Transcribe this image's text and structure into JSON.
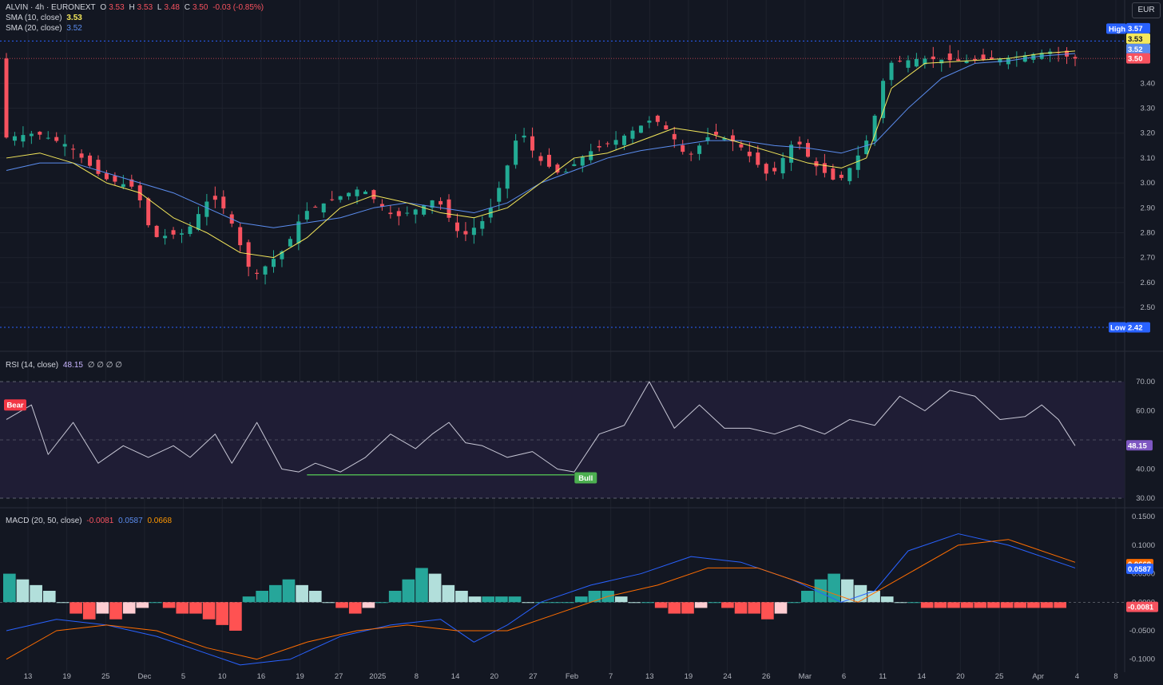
{
  "header": {
    "symbol": "ALVIN · 4h · EURONEXT",
    "open_label": "O",
    "open": "3.53",
    "high_label": "H",
    "high": "3.53",
    "low_label": "L",
    "low": "3.48",
    "close_label": "C",
    "close": "3.50",
    "change": "-0.03 (-0.85%)",
    "sma10_label": "SMA (10, close)",
    "sma10_value": "3.53",
    "sma20_label": "SMA (20, close)",
    "sma20_value": "3.52",
    "rsi_label": "RSI (14, close)",
    "rsi_value": "48.15",
    "rsi_extra": "∅ ∅ ∅ ∅",
    "macd_label": "MACD (20, 50, close)",
    "macd_hist": "-0.0081",
    "macd_line": "0.0587",
    "macd_signal": "0.0668"
  },
  "currency": "EUR",
  "colors": {
    "bg": "#131722",
    "grid": "#1e222d",
    "up": "#22ab94",
    "down": "#f7525f",
    "sma10": "#f5e85b",
    "sma20": "#5b8def",
    "rsi": "#c8c8d6",
    "rsi_band": "#1f1d35",
    "macd": "#2962ff",
    "signal": "#ff6d00",
    "hist_up_strong": "#26a69a",
    "hist_up_weak": "#b2dfdb",
    "hist_dn_strong": "#ff5252",
    "hist_dn_weak": "#ffcdd2",
    "high_low": "#2962ff",
    "bear": "#f23645",
    "bull": "#4caf50"
  },
  "chart_data": [
    {
      "type": "candlestick",
      "title": "ALVIN · 4h · EURONEXT",
      "ylim": [
        2.42,
        3.6
      ],
      "y_ticks": [
        "3.40",
        "3.30",
        "3.20",
        "3.10",
        "3.00",
        "2.90",
        "2.80",
        "2.70",
        "2.60",
        "2.50"
      ],
      "x_ticks": [
        "13",
        "19",
        "25",
        "Dec",
        "5",
        "10",
        "16",
        "19",
        "27",
        "2025",
        "8",
        "14",
        "20",
        "27",
        "Feb",
        "7",
        "13",
        "19",
        "24",
        "26",
        "Mar",
        "6",
        "11",
        "14",
        "20",
        "25",
        "Apr",
        "4",
        "8"
      ],
      "high_value": "3.57",
      "high_label": "High",
      "low_value": "2.42",
      "low_label": "Low",
      "last_price": "3.50",
      "price_path": [
        [
          0,
          3.18
        ],
        [
          4,
          3.2
        ],
        [
          8,
          3.15
        ],
        [
          12,
          3.02
        ],
        [
          16,
          2.98
        ],
        [
          18,
          2.78
        ],
        [
          22,
          2.8
        ],
        [
          25,
          2.95
        ],
        [
          27,
          2.88
        ],
        [
          30,
          2.62
        ],
        [
          32,
          2.68
        ],
        [
          34,
          2.74
        ],
        [
          36,
          2.88
        ],
        [
          40,
          2.94
        ],
        [
          43,
          2.98
        ],
        [
          47,
          2.86
        ],
        [
          50,
          2.9
        ],
        [
          52,
          2.94
        ],
        [
          55,
          2.78
        ],
        [
          58,
          2.86
        ],
        [
          60,
          3.02
        ],
        [
          62,
          3.22
        ],
        [
          64,
          3.1
        ],
        [
          67,
          3.03
        ],
        [
          70,
          3.12
        ],
        [
          74,
          3.18
        ],
        [
          78,
          3.26
        ],
        [
          80,
          3.2
        ],
        [
          82,
          3.1
        ],
        [
          85,
          3.2
        ],
        [
          88,
          3.16
        ],
        [
          92,
          3.02
        ],
        [
          95,
          3.18
        ],
        [
          97,
          3.08
        ],
        [
          100,
          3.0
        ],
        [
          102,
          3.08
        ],
        [
          104,
          3.2
        ],
        [
          106,
          3.48
        ],
        [
          110,
          3.5
        ],
        [
          115,
          3.49
        ],
        [
          120,
          3.5
        ],
        [
          126,
          3.53
        ],
        [
          128,
          3.5
        ]
      ],
      "sma10_path": [
        [
          0,
          3.1
        ],
        [
          4,
          3.12
        ],
        [
          8,
          3.08
        ],
        [
          12,
          3.0
        ],
        [
          16,
          2.96
        ],
        [
          20,
          2.86
        ],
        [
          24,
          2.8
        ],
        [
          28,
          2.72
        ],
        [
          32,
          2.7
        ],
        [
          36,
          2.78
        ],
        [
          40,
          2.9
        ],
        [
          44,
          2.95
        ],
        [
          48,
          2.92
        ],
        [
          52,
          2.88
        ],
        [
          56,
          2.86
        ],
        [
          60,
          2.9
        ],
        [
          64,
          3.0
        ],
        [
          68,
          3.1
        ],
        [
          72,
          3.12
        ],
        [
          76,
          3.17
        ],
        [
          80,
          3.22
        ],
        [
          84,
          3.2
        ],
        [
          88,
          3.16
        ],
        [
          92,
          3.12
        ],
        [
          96,
          3.08
        ],
        [
          100,
          3.06
        ],
        [
          103,
          3.1
        ],
        [
          106,
          3.38
        ],
        [
          110,
          3.48
        ],
        [
          115,
          3.49
        ],
        [
          120,
          3.5
        ],
        [
          124,
          3.52
        ],
        [
          128,
          3.53
        ]
      ],
      "sma20_path": [
        [
          0,
          3.05
        ],
        [
          4,
          3.08
        ],
        [
          8,
          3.08
        ],
        [
          12,
          3.04
        ],
        [
          16,
          3.0
        ],
        [
          20,
          2.96
        ],
        [
          24,
          2.9
        ],
        [
          28,
          2.84
        ],
        [
          32,
          2.82
        ],
        [
          36,
          2.84
        ],
        [
          40,
          2.86
        ],
        [
          44,
          2.9
        ],
        [
          48,
          2.92
        ],
        [
          52,
          2.9
        ],
        [
          56,
          2.88
        ],
        [
          60,
          2.92
        ],
        [
          64,
          3.0
        ],
        [
          68,
          3.05
        ],
        [
          72,
          3.1
        ],
        [
          76,
          3.13
        ],
        [
          80,
          3.15
        ],
        [
          84,
          3.17
        ],
        [
          88,
          3.17
        ],
        [
          92,
          3.15
        ],
        [
          96,
          3.14
        ],
        [
          100,
          3.12
        ],
        [
          104,
          3.16
        ],
        [
          108,
          3.3
        ],
        [
          112,
          3.42
        ],
        [
          116,
          3.48
        ],
        [
          120,
          3.49
        ],
        [
          124,
          3.51
        ],
        [
          128,
          3.52
        ]
      ]
    },
    {
      "type": "line",
      "title": "RSI (14, close)",
      "ylim": [
        30,
        70
      ],
      "y_ticks": [
        "70.00",
        "60.00",
        "40.00",
        "30.00"
      ],
      "mid": 50,
      "last_value": "48.15",
      "path": [
        [
          0,
          57
        ],
        [
          3,
          62
        ],
        [
          5,
          45
        ],
        [
          8,
          56
        ],
        [
          11,
          42
        ],
        [
          14,
          48
        ],
        [
          17,
          44
        ],
        [
          20,
          48
        ],
        [
          22,
          44
        ],
        [
          25,
          52
        ],
        [
          27,
          42
        ],
        [
          30,
          56
        ],
        [
          33,
          40
        ],
        [
          35,
          39
        ],
        [
          37,
          42
        ],
        [
          40,
          39
        ],
        [
          43,
          44
        ],
        [
          46,
          52
        ],
        [
          49,
          47
        ],
        [
          51,
          52
        ],
        [
          53,
          56
        ],
        [
          55,
          49
        ],
        [
          57,
          48
        ],
        [
          60,
          44
        ],
        [
          63,
          46
        ],
        [
          66,
          40
        ],
        [
          68,
          39
        ],
        [
          71,
          52
        ],
        [
          74,
          55
        ],
        [
          77,
          70
        ],
        [
          80,
          54
        ],
        [
          83,
          62
        ],
        [
          86,
          54
        ],
        [
          89,
          54
        ],
        [
          92,
          52
        ],
        [
          95,
          55
        ],
        [
          98,
          52
        ],
        [
          101,
          57
        ],
        [
          104,
          55
        ],
        [
          107,
          65
        ],
        [
          110,
          60
        ],
        [
          113,
          67
        ],
        [
          116,
          65
        ],
        [
          119,
          57
        ],
        [
          122,
          58
        ],
        [
          124,
          62
        ],
        [
          126,
          57
        ],
        [
          128,
          48
        ]
      ],
      "labels": [
        {
          "text": "Bear",
          "x": 2,
          "y": 62
        },
        {
          "text": "Bull",
          "x": 69,
          "y": 37
        }
      ],
      "divergence": {
        "x": [
          36,
          68
        ],
        "y": [
          38,
          38
        ]
      }
    },
    {
      "type": "bar+line",
      "title": "MACD (20, 50, close)",
      "ylim": [
        -0.12,
        0.16
      ],
      "y_ticks": [
        "0.1500",
        "0.1000",
        "0.0500",
        "0.0000",
        "-0.0500",
        "-0.1000"
      ],
      "last_macd": "0.0587",
      "last_signal": "0.0668",
      "last_hist": "-0.0081",
      "macd_path": [
        [
          0,
          -0.05
        ],
        [
          6,
          -0.03
        ],
        [
          12,
          -0.04
        ],
        [
          18,
          -0.06
        ],
        [
          24,
          -0.09
        ],
        [
          28,
          -0.11
        ],
        [
          34,
          -0.1
        ],
        [
          40,
          -0.06
        ],
        [
          46,
          -0.04
        ],
        [
          52,
          -0.03
        ],
        [
          56,
          -0.07
        ],
        [
          60,
          -0.04
        ],
        [
          64,
          0.0
        ],
        [
          70,
          0.03
        ],
        [
          76,
          0.05
        ],
        [
          82,
          0.08
        ],
        [
          88,
          0.07
        ],
        [
          94,
          0.04
        ],
        [
          100,
          0.0
        ],
        [
          104,
          0.02
        ],
        [
          108,
          0.09
        ],
        [
          114,
          0.12
        ],
        [
          120,
          0.1
        ],
        [
          128,
          0.06
        ]
      ],
      "signal_path": [
        [
          0,
          -0.1
        ],
        [
          6,
          -0.05
        ],
        [
          12,
          -0.04
        ],
        [
          18,
          -0.05
        ],
        [
          24,
          -0.08
        ],
        [
          30,
          -0.1
        ],
        [
          36,
          -0.07
        ],
        [
          42,
          -0.05
        ],
        [
          48,
          -0.04
        ],
        [
          54,
          -0.05
        ],
        [
          60,
          -0.05
        ],
        [
          66,
          -0.02
        ],
        [
          72,
          0.01
        ],
        [
          78,
          0.03
        ],
        [
          84,
          0.06
        ],
        [
          90,
          0.06
        ],
        [
          96,
          0.03
        ],
        [
          102,
          0.0
        ],
        [
          108,
          0.05
        ],
        [
          114,
          0.1
        ],
        [
          120,
          0.11
        ],
        [
          128,
          0.07
        ]
      ],
      "hist": [
        0.05,
        0.04,
        0.03,
        0.02,
        0.0,
        -0.02,
        -0.03,
        -0.02,
        -0.03,
        -0.02,
        -0.01,
        0.0,
        -0.01,
        -0.02,
        -0.02,
        -0.03,
        -0.04,
        -0.05,
        0.01,
        0.02,
        0.03,
        0.04,
        0.03,
        0.02,
        0.0,
        -0.01,
        -0.02,
        -0.01,
        0.0,
        0.02,
        0.04,
        0.06,
        0.05,
        0.03,
        0.02,
        0.01,
        0.01,
        0.01,
        0.01,
        0.0,
        0.0,
        0.0,
        0.0,
        0.01,
        0.02,
        0.02,
        0.01,
        0.0,
        0.0,
        -0.01,
        -0.02,
        -0.02,
        -0.01,
        0.0,
        -0.01,
        -0.02,
        -0.02,
        -0.03,
        -0.02,
        0.0,
        0.02,
        0.04,
        0.05,
        0.04,
        0.03,
        0.02,
        0.01,
        0.0,
        0.0,
        -0.01,
        -0.01,
        -0.01,
        -0.01,
        -0.01,
        -0.01,
        -0.01,
        -0.01,
        -0.01,
        -0.01,
        -0.01
      ]
    }
  ]
}
